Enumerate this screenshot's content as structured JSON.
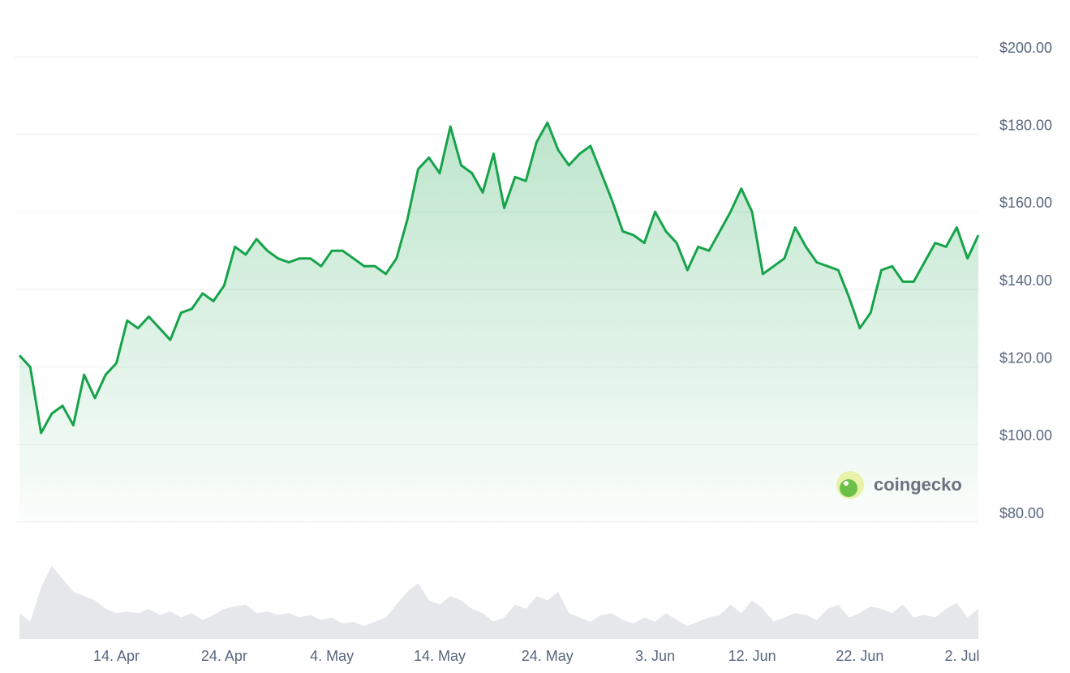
{
  "chart_data": {
    "type": "line",
    "x": [
      "5. Apr",
      "6. Apr",
      "7. Apr",
      "8. Apr",
      "9. Apr",
      "10. Apr",
      "11. Apr",
      "12. Apr",
      "13. Apr",
      "14. Apr",
      "15. Apr",
      "16. Apr",
      "17. Apr",
      "18. Apr",
      "19. Apr",
      "20. Apr",
      "21. Apr",
      "22. Apr",
      "23. Apr",
      "24. Apr",
      "25. Apr",
      "26. Apr",
      "27. Apr",
      "28. Apr",
      "29. Apr",
      "30. Apr",
      "1. May",
      "2. May",
      "3. May",
      "4. May",
      "5. May",
      "6. May",
      "7. May",
      "8. May",
      "9. May",
      "10. May",
      "11. May",
      "12. May",
      "13. May",
      "14. May",
      "15. May",
      "16. May",
      "17. May",
      "18. May",
      "19. May",
      "20. May",
      "21. May",
      "22. May",
      "23. May",
      "24. May",
      "25. May",
      "26. May",
      "27. May",
      "28. May",
      "29. May",
      "30. May",
      "31. May",
      "1. Jun",
      "2. Jun",
      "3. Jun",
      "4. Jun",
      "5. Jun",
      "6. Jun",
      "7. Jun",
      "8. Jun",
      "9. Jun",
      "10. Jun",
      "11. Jun",
      "12. Jun",
      "13. Jun",
      "14. Jun",
      "15. Jun",
      "16. Jun",
      "17. Jun",
      "18. Jun",
      "19. Jun",
      "20. Jun",
      "21. Jun",
      "22. Jun",
      "23. Jun",
      "24. Jun",
      "25. Jun",
      "26. Jun",
      "27. Jun",
      "28. Jun",
      "29. Jun",
      "30. Jun",
      "1. Jul",
      "2. Jul",
      "3. Jul"
    ],
    "values": [
      123,
      120,
      103,
      108,
      110,
      105,
      118,
      112,
      118,
      121,
      132,
      130,
      133,
      130,
      127,
      134,
      135,
      139,
      137,
      141,
      151,
      149,
      153,
      150,
      148,
      147,
      148,
      148,
      146,
      150,
      150,
      148,
      146,
      146,
      144,
      148,
      158,
      171,
      174,
      170,
      182,
      172,
      170,
      165,
      175,
      161,
      169,
      168,
      178,
      183,
      176,
      172,
      175,
      177,
      170,
      163,
      155,
      154,
      152,
      160,
      155,
      152,
      145,
      151,
      150,
      155,
      160,
      166,
      160,
      144,
      146,
      148,
      156,
      151,
      147,
      146,
      145,
      138,
      130,
      134,
      145,
      146,
      142,
      142,
      147,
      152,
      151,
      156,
      148,
      154
    ],
    "color": "#16a34a",
    "volume": [
      30,
      20,
      60,
      85,
      70,
      55,
      50,
      45,
      35,
      30,
      32,
      30,
      35,
      28,
      32,
      25,
      30,
      22,
      28,
      35,
      38,
      40,
      30,
      32,
      28,
      30,
      25,
      28,
      22,
      25,
      18,
      20,
      15,
      20,
      25,
      40,
      55,
      65,
      45,
      40,
      50,
      45,
      35,
      30,
      20,
      25,
      40,
      35,
      50,
      45,
      55,
      30,
      25,
      20,
      28,
      30,
      22,
      18,
      25,
      20,
      30,
      22,
      15,
      20,
      25,
      28,
      40,
      30,
      45,
      35,
      20,
      25,
      30,
      28,
      22,
      35,
      40,
      25,
      30,
      38,
      35,
      30,
      40,
      25,
      28,
      25,
      35,
      42,
      25,
      35
    ],
    "volume_color": "#e5e7eb",
    "ylim": [
      80,
      200
    ],
    "yticks": [
      {
        "value": 80,
        "label": "$80.00"
      },
      {
        "value": 100,
        "label": "$100.00"
      },
      {
        "value": 120,
        "label": "$120.00"
      },
      {
        "value": 140,
        "label": "$140.00"
      },
      {
        "value": 160,
        "label": "$160.00"
      },
      {
        "value": 180,
        "label": "$180.00"
      },
      {
        "value": 200,
        "label": "$200.00"
      }
    ],
    "xticks": [
      "14. Apr",
      "24. Apr",
      "4. May",
      "14. May",
      "24. May",
      "3. Jun",
      "12. Jun",
      "22. Jun",
      "2. Jul"
    ],
    "grid": true
  },
  "watermark": "coingecko"
}
